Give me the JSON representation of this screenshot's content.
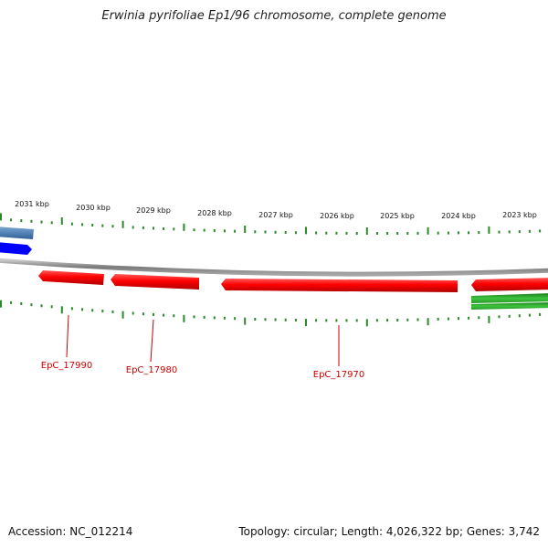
{
  "title": "Erwinia pyrifoliae Ep1/96 chromosome, complete genome",
  "footer": {
    "accession": "Accession: NC_012214",
    "summary": "Topology: circular; Length: 4,026,322 bp; Genes: 3,742"
  },
  "ruler": {
    "tick_labels": [
      "2031 kbp",
      "2030 kbp",
      "2029 kbp",
      "2028 kbp",
      "2027 kbp",
      "2026 kbp",
      "2025 kbp",
      "2024 kbp",
      "2023 kbp"
    ]
  },
  "colors": {
    "gene_red": "#ff0000",
    "gene_label": "#cc0000",
    "ticks": "#2a8a2a",
    "backbone": "#8a8a8a",
    "gene_blue": "#0000ff",
    "gene_steelblue": "#4a7fb8",
    "gene_green": "#2ea82e"
  },
  "genes": {
    "labels": [
      "EpC_17990",
      "EpC_17980",
      "EpC_17970"
    ]
  }
}
